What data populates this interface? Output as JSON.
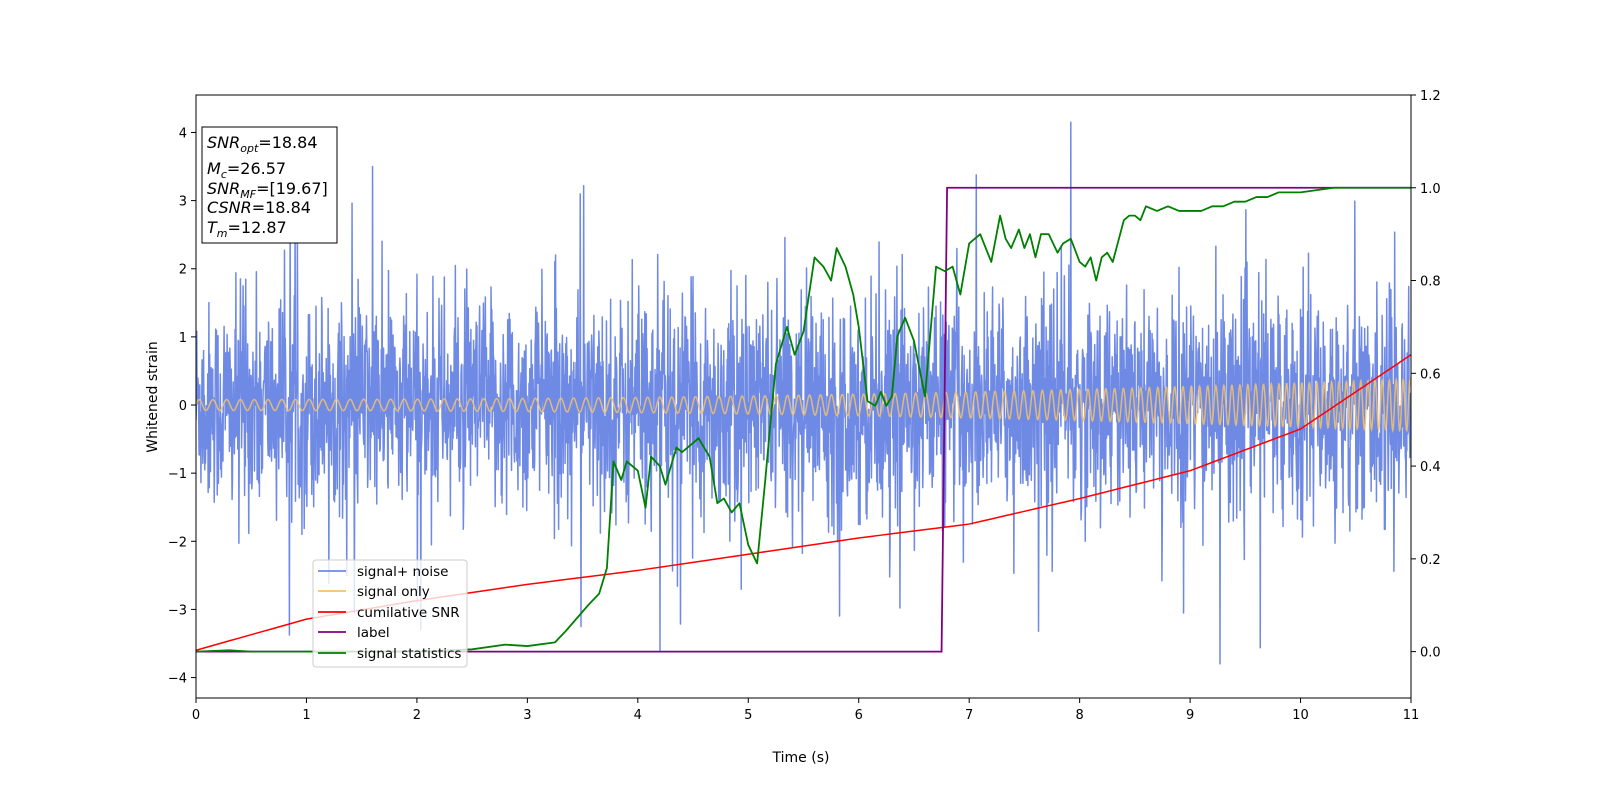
{
  "chart_data": {
    "type": "line",
    "xlabel": "Time (s)",
    "ylabel": "Whitened strain",
    "xlim": [
      0,
      11
    ],
    "ylim": [
      -4.3,
      4.55
    ],
    "y2lim": [
      -0.1,
      1.2
    ],
    "x_ticks": [
      "0",
      "1",
      "2",
      "3",
      "4",
      "5",
      "6",
      "7",
      "8",
      "9",
      "10",
      "11"
    ],
    "y_ticks": [
      "4",
      "3",
      "2",
      "1",
      "0",
      "−1",
      "−2",
      "−3",
      "−4"
    ],
    "y2_ticks": [
      "1.2",
      "1.0",
      "0.8",
      "0.6",
      "0.4",
      "0.2",
      "0.0"
    ],
    "grid": false,
    "legend_position": "lower-left",
    "info_box": {
      "lines": [
        {
          "symbol": "SNR",
          "sub": "opt",
          "value": "=18.84"
        },
        {
          "symbol": "M",
          "sub": "c",
          "value": "=26.57"
        },
        {
          "symbol": "SNR",
          "sub": "MF",
          "value": "=[19.67]"
        },
        {
          "symbol": "CSNR",
          "sub": "",
          "value": "=18.84"
        },
        {
          "symbol": "T",
          "sub": "m",
          "value": "=12.87"
        }
      ]
    },
    "series": [
      {
        "name": "signal+ noise",
        "color": "#6f8ae5",
        "axis": "left",
        "description_values": {
          "noise_std": 0.75,
          "peaks": [
            [
              1.6,
              3.5
            ],
            [
              7.92,
              4.15
            ],
            [
              9.27,
              -3.8
            ],
            [
              4.2,
              -3.6
            ]
          ]
        }
      },
      {
        "name": "signal only",
        "color": "#f5c16a",
        "axis": "left",
        "amplitude_start": 0.08,
        "amplitude_end": 0.38,
        "freq_start_hz": 8,
        "freq_end_hz": 16
      },
      {
        "name": "cumilative SNR",
        "color": "#ff0000",
        "axis": "right",
        "x": [
          0,
          1,
          2,
          3,
          4,
          5,
          6,
          7,
          8,
          9,
          10,
          11
        ],
        "y": [
          0.003,
          0.07,
          0.11,
          0.145,
          0.175,
          0.21,
          0.245,
          0.275,
          0.33,
          0.39,
          0.48,
          0.64
        ]
      },
      {
        "name": "label",
        "color": "#800080",
        "axis": "right",
        "x": [
          0,
          6.75,
          6.8,
          11
        ],
        "y": [
          0,
          0,
          1.0,
          1.0
        ]
      },
      {
        "name": "signal statistics",
        "color": "#008000",
        "axis": "right",
        "x": [
          0,
          0.3,
          0.5,
          1,
          2,
          2.5,
          2.8,
          3.0,
          3.25,
          3.35,
          3.55,
          3.65,
          3.72,
          3.78,
          3.85,
          3.9,
          4.0,
          4.07,
          4.12,
          4.2,
          4.25,
          4.35,
          4.4,
          4.5,
          4.55,
          4.65,
          4.72,
          4.78,
          4.85,
          4.92,
          5.0,
          5.08,
          5.15,
          5.25,
          5.35,
          5.42,
          5.5,
          5.6,
          5.68,
          5.75,
          5.8,
          5.88,
          5.95,
          6.0,
          6.08,
          6.15,
          6.2,
          6.25,
          6.3,
          6.35,
          6.42,
          6.5,
          6.6,
          6.7,
          6.78,
          6.85,
          6.92,
          7.0,
          7.1,
          7.2,
          7.28,
          7.33,
          7.38,
          7.45,
          7.5,
          7.55,
          7.6,
          7.65,
          7.72,
          7.8,
          7.85,
          7.92,
          8.0,
          8.05,
          8.1,
          8.15,
          8.2,
          8.25,
          8.3,
          8.4,
          8.45,
          8.5,
          8.55,
          8.6,
          8.7,
          8.8,
          8.9,
          9.0,
          9.1,
          9.2,
          9.3,
          9.4,
          9.5,
          9.6,
          9.7,
          9.8,
          10.0,
          10.3,
          10.6,
          11.0
        ],
        "y": [
          0.0,
          0.003,
          0.0,
          0.0,
          0.0,
          0.005,
          0.015,
          0.012,
          0.02,
          0.045,
          0.1,
          0.125,
          0.18,
          0.41,
          0.37,
          0.41,
          0.39,
          0.31,
          0.42,
          0.4,
          0.36,
          0.44,
          0.43,
          0.45,
          0.46,
          0.42,
          0.32,
          0.33,
          0.3,
          0.32,
          0.23,
          0.19,
          0.36,
          0.62,
          0.7,
          0.64,
          0.69,
          0.85,
          0.83,
          0.8,
          0.87,
          0.83,
          0.77,
          0.7,
          0.54,
          0.53,
          0.56,
          0.53,
          0.55,
          0.68,
          0.72,
          0.67,
          0.55,
          0.83,
          0.82,
          0.83,
          0.77,
          0.88,
          0.9,
          0.84,
          0.94,
          0.89,
          0.87,
          0.91,
          0.87,
          0.9,
          0.85,
          0.9,
          0.9,
          0.86,
          0.88,
          0.89,
          0.84,
          0.83,
          0.85,
          0.8,
          0.85,
          0.86,
          0.84,
          0.93,
          0.94,
          0.94,
          0.93,
          0.96,
          0.95,
          0.96,
          0.95,
          0.95,
          0.95,
          0.96,
          0.96,
          0.97,
          0.97,
          0.98,
          0.98,
          0.99,
          0.99,
          1.0,
          1.0,
          1.0
        ]
      }
    ]
  }
}
